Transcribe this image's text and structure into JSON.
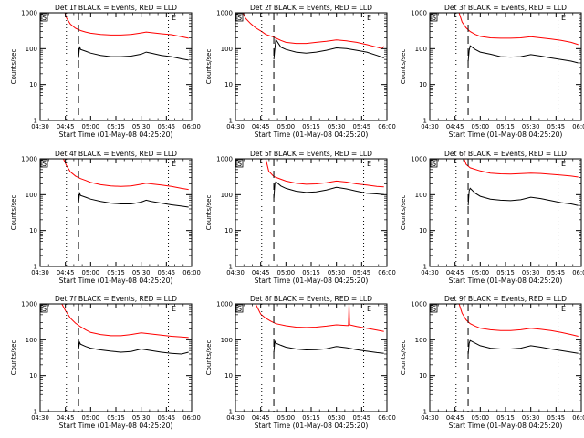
{
  "chart_data": [
    {
      "type": "line",
      "title": "Det 1f BLACK = Events, RED = LLD",
      "xlabel": "Start Time (01-May-08 04:25:20)",
      "ylabel": "Counts/sec",
      "x_ticks": [
        "04:30",
        "04:45",
        "05:00",
        "05:15",
        "05:30",
        "05:45",
        "06:00"
      ],
      "y_ticks": [
        "1",
        "10",
        "100",
        "1000"
      ],
      "yscale": "log",
      "ylim": [
        1,
        1000
      ],
      "xlim": [
        4.5,
        6.0
      ],
      "grid": false,
      "region_markers": [
        "S",
        "E"
      ],
      "vlines": [
        {
          "x": 4.76,
          "style": "dotted"
        },
        {
          "x": 4.88,
          "style": "dashed"
        },
        {
          "x": 5.77,
          "style": "dotted"
        }
      ],
      "series": [
        {
          "color": "#ff0000",
          "x": [
            4.745,
            4.76,
            4.8,
            4.85,
            4.9,
            4.95,
            5.0,
            5.1,
            5.2,
            5.3,
            5.4,
            5.5,
            5.55,
            5.6,
            5.7,
            5.8,
            5.9,
            5.97
          ],
          "values": [
            1000,
            720,
            480,
            370,
            320,
            290,
            270,
            250,
            240,
            240,
            250,
            275,
            290,
            280,
            260,
            245,
            215,
            195
          ]
        },
        {
          "color": "#000000",
          "x": [
            4.88,
            4.89,
            4.9,
            4.95,
            5.0,
            5.1,
            5.2,
            5.3,
            5.4,
            5.5,
            5.55,
            5.6,
            5.7,
            5.8,
            5.9,
            5.97
          ],
          "values": [
            55,
            115,
            95,
            85,
            75,
            65,
            60,
            60,
            62,
            70,
            80,
            75,
            65,
            60,
            52,
            48
          ]
        }
      ]
    },
    {
      "type": "line",
      "title": "Det 2f BLACK = Events, RED = LLD",
      "xlabel": "Start Time (01-May-08 04:25:20)",
      "ylabel": "Counts/sec",
      "x_ticks": [
        "04:30",
        "04:45",
        "05:00",
        "05:15",
        "05:30",
        "05:45",
        "06:00"
      ],
      "y_ticks": [
        "1",
        "10",
        "100",
        "1000"
      ],
      "yscale": "log",
      "ylim": [
        1,
        1000
      ],
      "xlim": [
        4.5,
        6.0
      ],
      "grid": false,
      "region_markers": [
        "S",
        "E"
      ],
      "vlines": [
        {
          "x": 4.76,
          "style": "dotted"
        },
        {
          "x": 4.88,
          "style": "dashed"
        },
        {
          "x": 5.77,
          "style": "dotted"
        }
      ],
      "series": [
        {
          "color": "#ff0000",
          "x": [
            4.575,
            4.6,
            4.65,
            4.7,
            4.76,
            4.8,
            4.88,
            4.95,
            5.0,
            5.1,
            5.2,
            5.3,
            5.4,
            5.5,
            5.6,
            5.7,
            5.8,
            5.9,
            5.95,
            5.97
          ],
          "values": [
            1000,
            700,
            500,
            380,
            300,
            250,
            210,
            170,
            150,
            140,
            140,
            150,
            160,
            175,
            165,
            150,
            130,
            110,
            100,
            115
          ]
        },
        {
          "color": "#000000",
          "x": [
            4.88,
            4.89,
            4.9,
            4.95,
            5.0,
            5.1,
            5.2,
            5.3,
            5.4,
            5.5,
            5.6,
            5.7,
            5.8,
            5.9,
            5.95,
            5.97
          ],
          "values": [
            50,
            100,
            180,
            110,
            95,
            80,
            75,
            80,
            90,
            105,
            100,
            90,
            80,
            65,
            58,
            55
          ]
        }
      ]
    },
    {
      "type": "line",
      "title": "Det 3f BLACK = Events, RED = LLD",
      "xlabel": "Start Time (01-May-08 04:25:20)",
      "ylabel": "Counts/sec",
      "x_ticks": [
        "04:30",
        "04:45",
        "05:00",
        "05:15",
        "05:30",
        "05:45",
        "06:00"
      ],
      "y_ticks": [
        "1",
        "10",
        "100",
        "1000"
      ],
      "yscale": "log",
      "ylim": [
        1,
        1000
      ],
      "xlim": [
        4.5,
        6.0
      ],
      "grid": false,
      "region_markers": [
        "S",
        "E"
      ],
      "vlines": [
        {
          "x": 4.76,
          "style": "dotted"
        },
        {
          "x": 4.88,
          "style": "dashed"
        },
        {
          "x": 5.77,
          "style": "dotted"
        }
      ],
      "series": [
        {
          "color": "#ff0000",
          "x": [
            4.79,
            4.82,
            4.86,
            4.9,
            4.95,
            5.0,
            5.1,
            5.2,
            5.3,
            5.4,
            5.5,
            5.6,
            5.7,
            5.8,
            5.9,
            5.97
          ],
          "values": [
            1000,
            550,
            380,
            300,
            250,
            220,
            200,
            195,
            195,
            200,
            215,
            200,
            185,
            170,
            150,
            130
          ]
        },
        {
          "color": "#000000",
          "x": [
            4.88,
            4.89,
            4.9,
            4.95,
            5.0,
            5.1,
            5.2,
            5.3,
            5.4,
            5.5,
            5.6,
            5.7,
            5.8,
            5.9,
            5.97
          ],
          "values": [
            45,
            90,
            120,
            95,
            80,
            70,
            60,
            58,
            60,
            68,
            62,
            55,
            50,
            45,
            40
          ]
        }
      ]
    },
    {
      "type": "line",
      "title": "Det 4f BLACK = Events, RED = LLD",
      "xlabel": "Start Time (01-May-08 04:25:20)",
      "ylabel": "Counts/sec",
      "x_ticks": [
        "04:30",
        "04:45",
        "05:00",
        "05:15",
        "05:30",
        "05:45",
        "06:00"
      ],
      "y_ticks": [
        "1",
        "10",
        "100",
        "1000"
      ],
      "yscale": "log",
      "ylim": [
        1,
        1000
      ],
      "xlim": [
        4.5,
        6.0
      ],
      "grid": false,
      "region_markers": [
        "S",
        "E"
      ],
      "vlines": [
        {
          "x": 4.76,
          "style": "dotted"
        },
        {
          "x": 4.88,
          "style": "dashed"
        },
        {
          "x": 5.77,
          "style": "dotted"
        }
      ],
      "series": [
        {
          "color": "#ff0000",
          "x": [
            4.73,
            4.76,
            4.8,
            4.85,
            4.9,
            4.95,
            5.0,
            5.1,
            5.2,
            5.3,
            5.4,
            5.5,
            5.55,
            5.6,
            5.7,
            5.8,
            5.9,
            5.97
          ],
          "values": [
            1000,
            650,
            430,
            330,
            280,
            250,
            220,
            190,
            175,
            170,
            175,
            195,
            210,
            200,
            185,
            170,
            150,
            140
          ]
        },
        {
          "color": "#000000",
          "x": [
            4.88,
            4.89,
            4.9,
            4.95,
            5.0,
            5.1,
            5.2,
            5.3,
            5.4,
            5.5,
            5.55,
            5.6,
            5.7,
            5.8,
            5.9,
            5.97
          ],
          "values": [
            60,
            110,
            95,
            85,
            75,
            65,
            58,
            55,
            55,
            62,
            70,
            65,
            58,
            52,
            48,
            45
          ]
        }
      ]
    },
    {
      "type": "line",
      "title": "Det 5f BLACK = Events, RED = LLD",
      "xlabel": "Start Time (01-May-08 04:25:20)",
      "ylabel": "Counts/sec",
      "x_ticks": [
        "04:30",
        "04:45",
        "05:00",
        "05:15",
        "05:30",
        "05:45",
        "06:00"
      ],
      "y_ticks": [
        "1",
        "10",
        "100",
        "1000"
      ],
      "yscale": "log",
      "ylim": [
        1,
        1000
      ],
      "xlim": [
        4.5,
        6.0
      ],
      "grid": false,
      "region_markers": [
        "S",
        "E"
      ],
      "vlines": [
        {
          "x": 4.76,
          "style": "dotted"
        },
        {
          "x": 4.88,
          "style": "dashed"
        },
        {
          "x": 5.77,
          "style": "dotted"
        }
      ],
      "series": [
        {
          "color": "#ff0000",
          "x": [
            4.8,
            4.83,
            4.88,
            4.95,
            5.0,
            5.1,
            5.2,
            5.3,
            5.4,
            5.5,
            5.6,
            5.7,
            5.8,
            5.9,
            5.97
          ],
          "values": [
            1000,
            450,
            320,
            270,
            240,
            210,
            195,
            200,
            215,
            240,
            225,
            200,
            185,
            170,
            165
          ]
        },
        {
          "color": "#000000",
          "x": [
            4.88,
            4.89,
            4.9,
            4.95,
            5.0,
            5.1,
            5.2,
            5.3,
            5.4,
            5.5,
            5.6,
            5.7,
            5.8,
            5.9,
            5.97
          ],
          "values": [
            80,
            200,
            230,
            175,
            150,
            125,
            115,
            120,
            135,
            160,
            145,
            125,
            110,
            105,
            100
          ]
        }
      ]
    },
    {
      "type": "line",
      "title": "Det 6f BLACK = Events, RED = LLD",
      "xlabel": "Start Time (01-May-08 04:25:20)",
      "ylabel": "Counts/sec",
      "x_ticks": [
        "04:30",
        "04:45",
        "05:00",
        "05:15",
        "05:30",
        "05:45",
        "06:00"
      ],
      "y_ticks": [
        "1",
        "10",
        "100",
        "1000"
      ],
      "yscale": "log",
      "ylim": [
        1,
        1000
      ],
      "xlim": [
        4.5,
        6.0
      ],
      "grid": false,
      "region_markers": [
        "S",
        "E"
      ],
      "vlines": [
        {
          "x": 4.76,
          "style": "dotted"
        },
        {
          "x": 4.88,
          "style": "dashed"
        },
        {
          "x": 5.77,
          "style": "dotted"
        }
      ],
      "series": [
        {
          "color": "#ff0000",
          "x": [
            4.84,
            4.86,
            4.9,
            5.0,
            5.1,
            5.2,
            5.3,
            5.4,
            5.5,
            5.6,
            5.7,
            5.8,
            5.9,
            5.97
          ],
          "values": [
            1000,
            700,
            560,
            460,
            400,
            380,
            375,
            385,
            400,
            390,
            370,
            350,
            330,
            310
          ]
        },
        {
          "color": "#000000",
          "x": [
            4.88,
            4.89,
            4.9,
            4.95,
            5.0,
            5.1,
            5.2,
            5.3,
            5.4,
            5.5,
            5.6,
            5.7,
            5.8,
            5.9,
            5.97
          ],
          "values": [
            50,
            130,
            150,
            110,
            90,
            75,
            70,
            68,
            72,
            85,
            78,
            68,
            60,
            55,
            50
          ]
        }
      ]
    },
    {
      "type": "line",
      "title": "Det 7f BLACK = Events, RED = LLD",
      "xlabel": "Start Time (01-May-08 04:25:20)",
      "ylabel": "Counts/sec",
      "x_ticks": [
        "04:30",
        "04:45",
        "05:00",
        "05:15",
        "05:30",
        "05:45",
        "06:00"
      ],
      "y_ticks": [
        "1",
        "10",
        "100",
        "1000"
      ],
      "yscale": "log",
      "ylim": [
        1,
        1000
      ],
      "xlim": [
        4.5,
        6.0
      ],
      "grid": false,
      "region_markers": [
        "S",
        "E"
      ],
      "vlines": [
        {
          "x": 4.76,
          "style": "dotted"
        },
        {
          "x": 4.88,
          "style": "dashed"
        },
        {
          "x": 5.77,
          "style": "dotted"
        }
      ],
      "series": [
        {
          "color": "#ff0000",
          "x": [
            4.715,
            4.75,
            4.8,
            4.85,
            4.9,
            4.95,
            5.0,
            5.1,
            5.2,
            5.3,
            5.4,
            5.5,
            5.6,
            5.7,
            5.8,
            5.9,
            5.97
          ],
          "values": [
            1000,
            650,
            400,
            290,
            230,
            190,
            160,
            140,
            130,
            130,
            140,
            155,
            145,
            135,
            125,
            120,
            115
          ]
        },
        {
          "color": "#000000",
          "x": [
            4.88,
            4.89,
            4.9,
            4.95,
            5.0,
            5.1,
            5.2,
            5.3,
            5.4,
            5.5,
            5.6,
            5.7,
            5.8,
            5.9,
            5.97
          ],
          "values": [
            55,
            85,
            75,
            65,
            58,
            52,
            48,
            45,
            47,
            55,
            50,
            45,
            42,
            40,
            45
          ]
        }
      ]
    },
    {
      "type": "line",
      "title": "Det 8f BLACK = Events, RED = LLD",
      "xlabel": "Start Time (01-May-08 04:25:20)",
      "ylabel": "Counts/sec",
      "x_ticks": [
        "04:30",
        "04:45",
        "05:00",
        "05:15",
        "05:30",
        "05:45",
        "06:00"
      ],
      "y_ticks": [
        "1",
        "10",
        "100",
        "1000"
      ],
      "yscale": "log",
      "ylim": [
        1,
        1000
      ],
      "xlim": [
        4.5,
        6.0
      ],
      "grid": false,
      "region_markers": [
        "S",
        "E"
      ],
      "vlines": [
        {
          "x": 4.76,
          "style": "dotted"
        },
        {
          "x": 4.88,
          "style": "dashed"
        },
        {
          "x": 5.77,
          "style": "dotted"
        }
      ],
      "series": [
        {
          "color": "#ff0000",
          "x": [
            4.7,
            4.75,
            4.8,
            4.85,
            4.9,
            5.0,
            5.1,
            5.2,
            5.3,
            5.4,
            5.5,
            5.6,
            5.62,
            5.625,
            5.63,
            5.7,
            5.8,
            5.9,
            5.97
          ],
          "values": [
            1000,
            520,
            400,
            330,
            280,
            245,
            225,
            220,
            225,
            240,
            260,
            250,
            250,
            1000,
            260,
            235,
            210,
            185,
            170
          ]
        },
        {
          "color": "#000000",
          "x": [
            4.88,
            4.89,
            4.9,
            4.95,
            5.0,
            5.1,
            5.2,
            5.3,
            5.4,
            5.5,
            5.6,
            5.7,
            5.8,
            5.9,
            5.97
          ],
          "values": [
            45,
            90,
            80,
            70,
            62,
            55,
            52,
            53,
            56,
            65,
            60,
            53,
            48,
            44,
            42
          ]
        }
      ]
    },
    {
      "type": "line",
      "title": "Det 9f BLACK = Events, RED = LLD",
      "xlabel": "Start Time (01-May-08 04:25:20)",
      "ylabel": "Counts/sec",
      "x_ticks": [
        "04:30",
        "04:45",
        "05:00",
        "05:15",
        "05:30",
        "05:45",
        "06:00"
      ],
      "y_ticks": [
        "1",
        "10",
        "100",
        "1000"
      ],
      "yscale": "log",
      "ylim": [
        1,
        1000
      ],
      "xlim": [
        4.5,
        6.0
      ],
      "grid": false,
      "region_markers": [
        "S",
        "E"
      ],
      "vlines": [
        {
          "x": 4.76,
          "style": "dotted"
        },
        {
          "x": 4.88,
          "style": "dashed"
        },
        {
          "x": 5.77,
          "style": "dotted"
        }
      ],
      "series": [
        {
          "color": "#ff0000",
          "x": [
            4.79,
            4.82,
            4.86,
            4.9,
            4.95,
            5.0,
            5.1,
            5.2,
            5.3,
            5.4,
            5.5,
            5.6,
            5.7,
            5.8,
            5.9,
            5.97
          ],
          "values": [
            1000,
            550,
            360,
            280,
            240,
            210,
            190,
            180,
            180,
            190,
            210,
            195,
            180,
            160,
            140,
            125
          ]
        },
        {
          "color": "#000000",
          "x": [
            4.88,
            4.89,
            4.9,
            4.95,
            5.0,
            5.1,
            5.2,
            5.3,
            5.4,
            5.5,
            5.6,
            5.7,
            5.8,
            5.9,
            5.97
          ],
          "values": [
            40,
            80,
            95,
            80,
            68,
            58,
            55,
            55,
            58,
            68,
            62,
            55,
            50,
            45,
            42
          ]
        }
      ]
    }
  ]
}
